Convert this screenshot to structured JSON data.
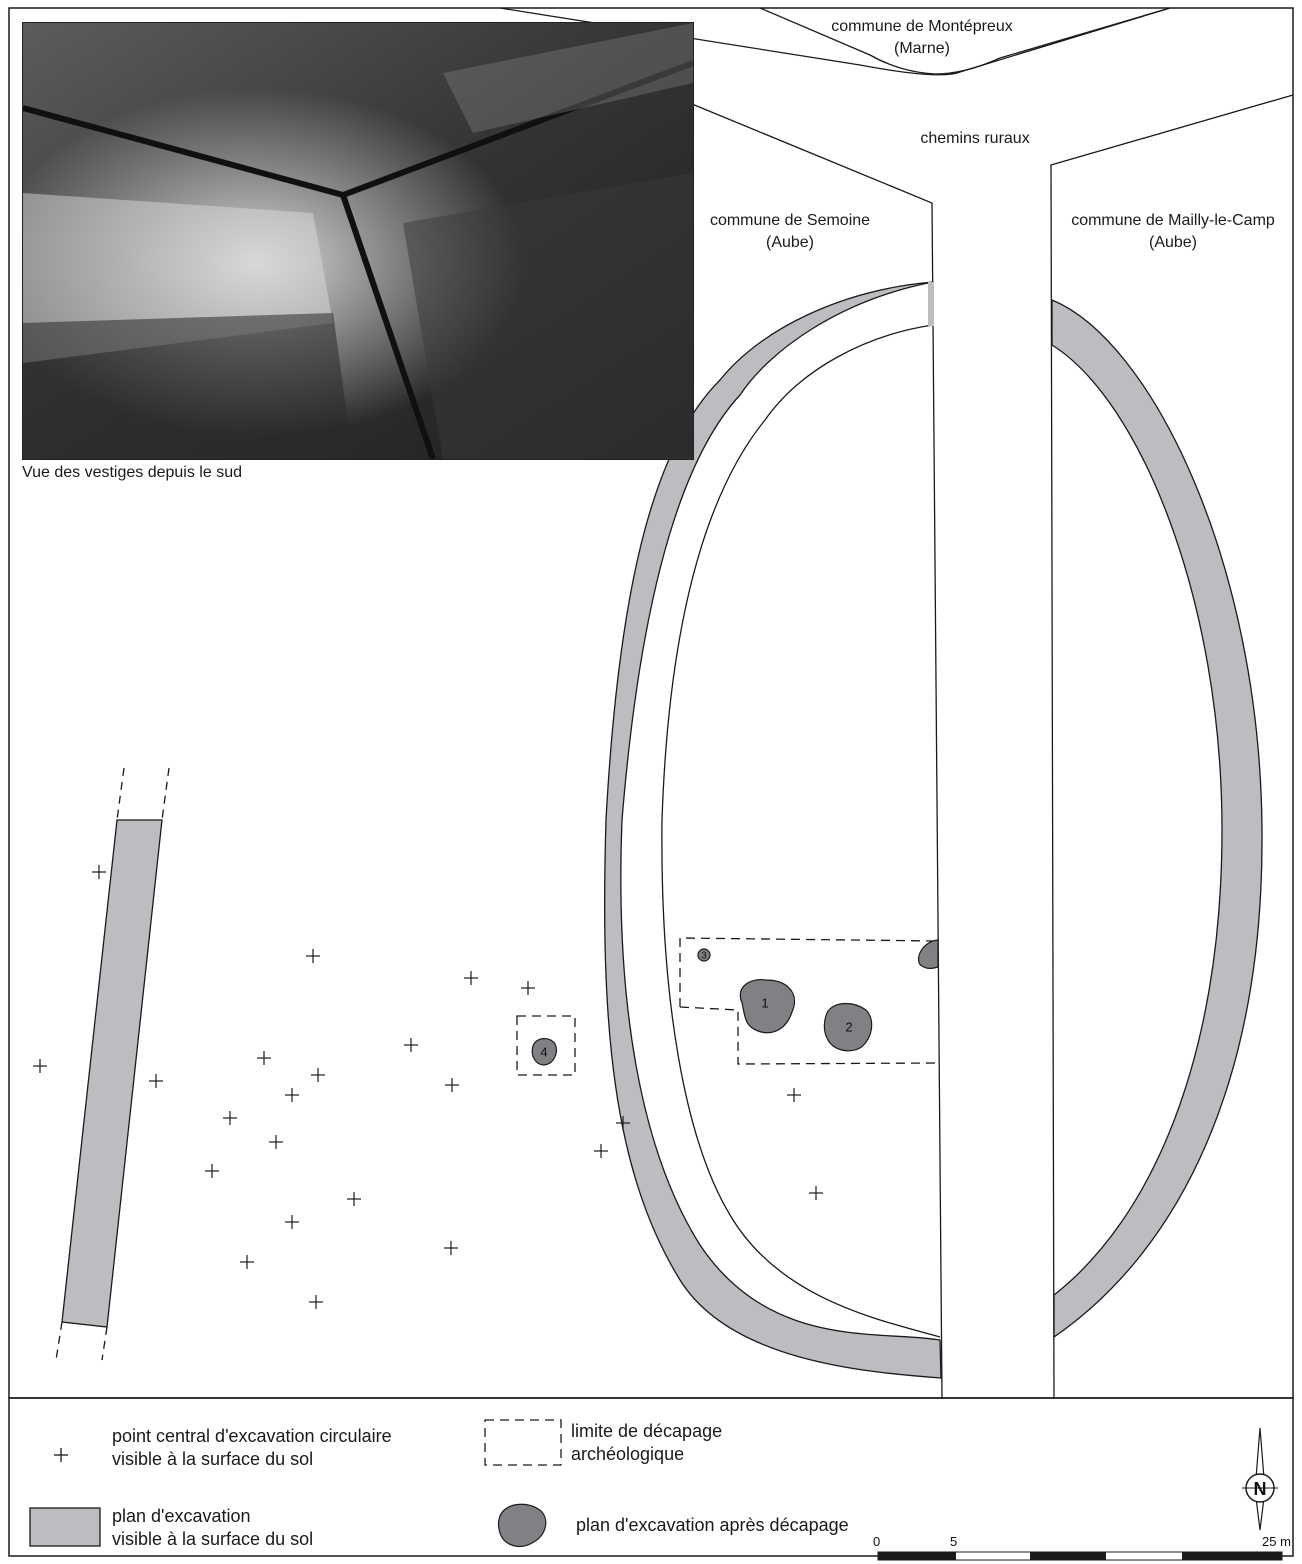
{
  "labels": {
    "montepreux_line1": "commune de Montépreux",
    "montepreux_line2": "(Marne)",
    "chemins": "chemins ruraux",
    "semoine_line1": "commune de Semoine",
    "semoine_line2": "(Aube)",
    "mailly_line1": "commune de Mailly-le-Camp",
    "mailly_line2": "(Aube)",
    "photo_caption": "Vue des vestiges depuis le sud"
  },
  "pits": [
    {
      "id": "pit-1",
      "number": "1"
    },
    {
      "id": "pit-2",
      "number": "2"
    },
    {
      "id": "pit-3",
      "number": "3"
    },
    {
      "id": "pit-4",
      "number": "4"
    }
  ],
  "legend": {
    "cross_line1": "point central d'excavation circulaire",
    "cross_line2": "visible à la surface du sol",
    "dashed_line1": "limite de décapage",
    "dashed_line2": "archéologique",
    "grey_line1": "plan d'excavation",
    "grey_line2": "visible à la surface du sol",
    "pit_label": "plan d'excavation après décapage"
  },
  "north_arrow": {
    "letter": "N"
  },
  "scale": {
    "start": "0",
    "mid": "5",
    "end": "25 m"
  },
  "colors": {
    "excavation_fill": "#bcbdc0",
    "pit_fill": "#808184",
    "stroke": "#1a1a1a"
  }
}
